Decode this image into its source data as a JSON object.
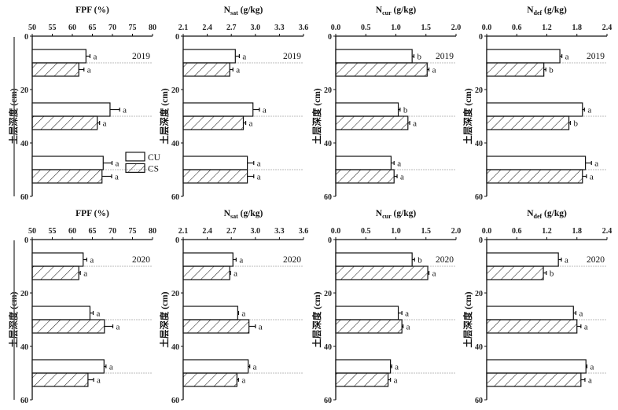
{
  "chart_data": [
    {
      "type": "bar",
      "orientation": "horizontal",
      "title_main": "FPF (%)",
      "title_sub": "",
      "title_unit": "",
      "ylabel": "土层深度 (cm)",
      "year": "2019",
      "xlim": [
        50,
        80
      ],
      "xticks": [
        "50",
        "55",
        "60",
        "65",
        "70",
        "75",
        "80"
      ],
      "ylim": [
        0,
        60
      ],
      "yticks": [
        "0",
        "20",
        "40",
        "60"
      ],
      "depth_intervals": [
        [
          5,
          15
        ],
        [
          25,
          35
        ],
        [
          45,
          55
        ]
      ],
      "series": [
        {
          "name": "CU",
          "values": [
            63.4,
            69.4,
            67.7
          ],
          "errors": [
            1.0,
            2.4,
            2.2
          ],
          "letters": [
            "a",
            "a",
            "a"
          ]
        },
        {
          "name": "CS",
          "values": [
            61.6,
            66.2,
            67.4
          ],
          "errors": [
            1.3,
            0.6,
            2.4
          ],
          "letters": [
            "a",
            "a",
            "a"
          ]
        }
      ],
      "legend": {
        "show": true,
        "entries": [
          "CU",
          "CS"
        ]
      }
    },
    {
      "type": "bar",
      "orientation": "horizontal",
      "title_main": "N",
      "title_sub": "sat",
      "title_unit": " (g/kg)",
      "ylabel": "土层深度 (cm)",
      "year": "2019",
      "xlim": [
        2.1,
        3.6
      ],
      "xticks": [
        "2.1",
        "2.4",
        "2.7",
        "3.0",
        "3.3",
        "3.6"
      ],
      "ylim": [
        0,
        60
      ],
      "yticks": [
        "0",
        "20",
        "40",
        "60"
      ],
      "depth_intervals": [
        [
          5,
          15
        ],
        [
          25,
          35
        ],
        [
          45,
          55
        ]
      ],
      "series": [
        {
          "name": "CU",
          "values": [
            2.75,
            2.97,
            2.9
          ],
          "errors": [
            0.05,
            0.08,
            0.08
          ],
          "letters": [
            "a",
            "a",
            "a"
          ]
        },
        {
          "name": "CS",
          "values": [
            2.68,
            2.85,
            2.9
          ],
          "errors": [
            0.04,
            0.03,
            0.08
          ],
          "letters": [
            "a",
            "a",
            "a"
          ]
        }
      ],
      "legend": {
        "show": false
      }
    },
    {
      "type": "bar",
      "orientation": "horizontal",
      "title_main": "N",
      "title_sub": "cur",
      "title_unit": " (g/kg)",
      "ylabel": "土层深度 (cm)",
      "year": "2019",
      "xlim": [
        0,
        2.0
      ],
      "xticks": [
        "0.0",
        "0.5",
        "1.0",
        "1.5",
        "2.0"
      ],
      "ylim": [
        0,
        60
      ],
      "yticks": [
        "0",
        "20",
        "40",
        "60"
      ],
      "depth_intervals": [
        [
          5,
          15
        ],
        [
          25,
          35
        ],
        [
          45,
          55
        ]
      ],
      "series": [
        {
          "name": "CU",
          "values": [
            1.27,
            1.04,
            0.92
          ],
          "errors": [
            0.03,
            0.03,
            0.05
          ],
          "letters": [
            "b",
            "b",
            "a"
          ]
        },
        {
          "name": "CS",
          "values": [
            1.52,
            1.2,
            0.97
          ],
          "errors": [
            0.03,
            0.03,
            0.05
          ],
          "letters": [
            "a",
            "a",
            "a"
          ]
        }
      ],
      "legend": {
        "show": false
      }
    },
    {
      "type": "bar",
      "orientation": "horizontal",
      "title_main": "N",
      "title_sub": "def",
      "title_unit": " (g/kg)",
      "ylabel": "土层深度 (cm)",
      "year": "2019",
      "xlim": [
        0,
        2.4
      ],
      "xticks": [
        "0.0",
        "0.6",
        "1.2",
        "1.8",
        "2.4"
      ],
      "ylim": [
        0,
        60
      ],
      "yticks": [
        "0",
        "20",
        "40",
        "60"
      ],
      "depth_intervals": [
        [
          5,
          15
        ],
        [
          25,
          35
        ],
        [
          45,
          55
        ]
      ],
      "series": [
        {
          "name": "CU",
          "values": [
            1.46,
            1.91,
            1.97
          ],
          "errors": [
            0.04,
            0.04,
            0.12
          ],
          "letters": [
            "a",
            "a",
            "a"
          ]
        },
        {
          "name": "CS",
          "values": [
            1.14,
            1.64,
            1.91
          ],
          "errors": [
            0.04,
            0.03,
            0.08
          ],
          "letters": [
            "b",
            "b",
            "a"
          ]
        }
      ],
      "legend": {
        "show": false
      }
    },
    {
      "type": "bar",
      "orientation": "horizontal",
      "title_main": "FPF (%)",
      "title_sub": "",
      "title_unit": "",
      "ylabel": "土层深度 (cm)",
      "year": "2020",
      "xlim": [
        50,
        80
      ],
      "xticks": [
        "50",
        "55",
        "60",
        "65",
        "70",
        "75",
        "80"
      ],
      "ylim": [
        0,
        60
      ],
      "yticks": [
        "0",
        "20",
        "40",
        "60"
      ],
      "depth_intervals": [
        [
          5,
          15
        ],
        [
          25,
          35
        ],
        [
          45,
          55
        ]
      ],
      "series": [
        {
          "name": "CU",
          "values": [
            62.7,
            64.4,
            67.9
          ],
          "errors": [
            0.9,
            0.8,
            0.5
          ],
          "letters": [
            "a",
            "a",
            "a"
          ]
        },
        {
          "name": "CS",
          "values": [
            61.6,
            68.0,
            63.9
          ],
          "errors": [
            0.4,
            2.1,
            1.4
          ],
          "letters": [
            "a",
            "a",
            "a"
          ]
        }
      ],
      "legend": {
        "show": false
      }
    },
    {
      "type": "bar",
      "orientation": "horizontal",
      "title_main": "N",
      "title_sub": "sat",
      "title_unit": " (g/kg)",
      "ylabel": "土层深度 (cm)",
      "year": "2020",
      "xlim": [
        2.1,
        3.6
      ],
      "xticks": [
        "2.1",
        "2.4",
        "2.7",
        "3.0",
        "3.3",
        "3.6"
      ],
      "ylim": [
        0,
        60
      ],
      "yticks": [
        "0",
        "20",
        "40",
        "60"
      ],
      "depth_intervals": [
        [
          5,
          15
        ],
        [
          25,
          35
        ],
        [
          45,
          55
        ]
      ],
      "series": [
        {
          "name": "CU",
          "values": [
            2.72,
            2.78,
            2.91
          ],
          "errors": [
            0.04,
            0.01,
            0.02
          ],
          "letters": [
            "a",
            "a",
            "a"
          ]
        },
        {
          "name": "CS",
          "values": [
            2.68,
            2.92,
            2.77
          ],
          "errors": [
            0.01,
            0.08,
            0.02
          ],
          "letters": [
            "a",
            "a",
            "a"
          ]
        }
      ],
      "legend": {
        "show": false
      }
    },
    {
      "type": "bar",
      "orientation": "horizontal",
      "title_main": "N",
      "title_sub": "cur",
      "title_unit": " (g/kg)",
      "ylabel": "土层深度 (cm)",
      "year": "2020",
      "xlim": [
        0,
        2.0
      ],
      "xticks": [
        "0.0",
        "0.5",
        "1.0",
        "1.5",
        "2.0"
      ],
      "ylim": [
        0,
        60
      ],
      "yticks": [
        "0",
        "20",
        "40",
        "60"
      ],
      "depth_intervals": [
        [
          5,
          15
        ],
        [
          25,
          35
        ],
        [
          45,
          55
        ]
      ],
      "series": [
        {
          "name": "CU",
          "values": [
            1.27,
            1.04,
            0.91
          ],
          "errors": [
            0.04,
            0.06,
            0.02
          ],
          "letters": [
            "b",
            "a",
            "a"
          ]
        },
        {
          "name": "CS",
          "values": [
            1.53,
            1.1,
            0.87
          ],
          "errors": [
            0.02,
            0.02,
            0.04
          ],
          "letters": [
            "a",
            "a",
            "a"
          ]
        }
      ],
      "legend": {
        "show": false
      }
    },
    {
      "type": "bar",
      "orientation": "horizontal",
      "title_main": "N",
      "title_sub": "def",
      "title_unit": " (g/kg)",
      "ylabel": "土层深度 (cm)",
      "year": "2020",
      "xlim": [
        0,
        2.4
      ],
      "xticks": [
        "0.0",
        "0.6",
        "1.2",
        "1.8",
        "2.4"
      ],
      "ylim": [
        0,
        60
      ],
      "yticks": [
        "0",
        "20",
        "40",
        "60"
      ],
      "depth_intervals": [
        [
          5,
          15
        ],
        [
          25,
          35
        ],
        [
          45,
          55
        ]
      ],
      "series": [
        {
          "name": "CU",
          "values": [
            1.43,
            1.73,
            1.98
          ],
          "errors": [
            0.06,
            0.05,
            0.02
          ],
          "letters": [
            "a",
            "a",
            "a"
          ]
        },
        {
          "name": "CS",
          "values": [
            1.13,
            1.8,
            1.88
          ],
          "errors": [
            0.06,
            0.08,
            0.08
          ],
          "letters": [
            "b",
            "a",
            "a"
          ]
        }
      ],
      "legend": {
        "show": false
      }
    }
  ]
}
